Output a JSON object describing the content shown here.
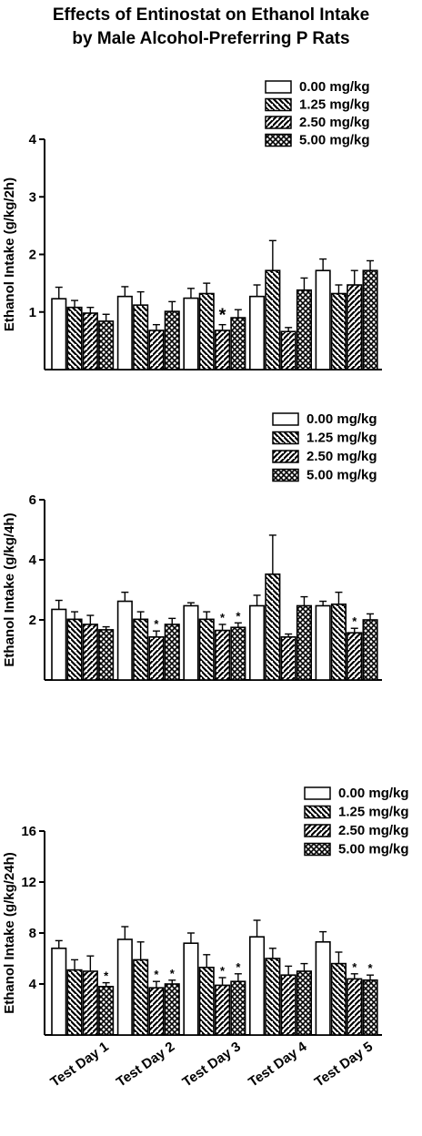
{
  "figure": {
    "title_line1": "Effects of Entinostat on Ethanol Intake",
    "title_line2": "by Male Alcohol-Preferring P Rats"
  },
  "chart_data": [
    {
      "type": "bar",
      "ylabel": "Ethanol Intake (g/kg/2h)",
      "ylim": [
        0,
        4
      ],
      "yticks": [
        1,
        2,
        3,
        4
      ],
      "categories": [
        "Test Day 1",
        "Test Day 2",
        "Test Day 3",
        "Test Day 4",
        "Test Day 5"
      ],
      "legend_position": "top-right",
      "series": [
        {
          "name": "0.00 mg/kg",
          "values": [
            1.23,
            1.27,
            1.24,
            1.27,
            1.72
          ],
          "errors": [
            0.2,
            0.17,
            0.17,
            0.2,
            0.2
          ]
        },
        {
          "name": "1.25 mg/kg",
          "values": [
            1.08,
            1.12,
            1.32,
            1.72,
            1.32
          ],
          "errors": [
            0.12,
            0.23,
            0.18,
            0.52,
            0.15
          ]
        },
        {
          "name": "2.50 mg/kg",
          "values": [
            0.98,
            0.68,
            0.68,
            0.66,
            1.47
          ],
          "errors": [
            0.1,
            0.1,
            0.1,
            0.07,
            0.25
          ]
        },
        {
          "name": "5.00 mg/kg",
          "values": [
            0.84,
            1.01,
            0.9,
            1.38,
            1.72
          ],
          "errors": [
            0.12,
            0.17,
            0.14,
            0.21,
            0.17
          ]
        }
      ],
      "significance": [
        {
          "category": "Test Day 3",
          "series": "2.50 mg/kg",
          "label": "*"
        }
      ]
    },
    {
      "type": "bar",
      "ylabel": "Ethanol Intake (g/kg/4h)",
      "ylim": [
        0,
        6
      ],
      "yticks": [
        2,
        4,
        6
      ],
      "categories": [
        "Test Day 1",
        "Test Day 2",
        "Test Day 3",
        "Test Day 4",
        "Test Day 5"
      ],
      "legend_position": "top-right",
      "series": [
        {
          "name": "0.00 mg/kg",
          "values": [
            2.35,
            2.62,
            2.47,
            2.47,
            2.47
          ],
          "errors": [
            0.3,
            0.3,
            0.1,
            0.35,
            0.15
          ]
        },
        {
          "name": "1.25 mg/kg",
          "values": [
            2.02,
            2.02,
            2.02,
            3.52,
            2.52
          ],
          "errors": [
            0.25,
            0.25,
            0.25,
            1.3,
            0.4
          ]
        },
        {
          "name": "2.50 mg/kg",
          "values": [
            1.85,
            1.43,
            1.65,
            1.43,
            1.57
          ],
          "errors": [
            0.3,
            0.2,
            0.2,
            0.1,
            0.15
          ]
        },
        {
          "name": "5.00 mg/kg",
          "values": [
            1.67,
            1.85,
            1.75,
            2.47,
            2.0
          ],
          "errors": [
            0.1,
            0.2,
            0.15,
            0.3,
            0.2
          ]
        }
      ],
      "significance": [
        {
          "category": "Test Day 2",
          "series": "2.50 mg/kg",
          "label": "*"
        },
        {
          "category": "Test Day 3",
          "series": "2.50 mg/kg",
          "label": "*"
        },
        {
          "category": "Test Day 3",
          "series": "5.00 mg/kg",
          "label": "*"
        },
        {
          "category": "Test Day 5",
          "series": "2.50 mg/kg",
          "label": "*"
        }
      ]
    },
    {
      "type": "bar",
      "ylabel": "Ethanol Intake (g/kg/24h)",
      "ylim": [
        0,
        16
      ],
      "yticks": [
        4,
        8,
        12,
        16
      ],
      "categories": [
        "Test Day 1",
        "Test Day 2",
        "Test Day 3",
        "Test Day 4",
        "Test Day 5"
      ],
      "legend_position": "top-right",
      "series": [
        {
          "name": "0.00 mg/kg",
          "values": [
            6.8,
            7.5,
            7.2,
            7.7,
            7.3
          ],
          "errors": [
            0.6,
            1.0,
            0.8,
            1.3,
            0.8
          ]
        },
        {
          "name": "1.25 mg/kg",
          "values": [
            5.1,
            5.9,
            5.3,
            6.0,
            5.6
          ],
          "errors": [
            0.8,
            1.4,
            1.0,
            0.8,
            0.9
          ]
        },
        {
          "name": "2.50 mg/kg",
          "values": [
            5.0,
            3.7,
            3.9,
            4.7,
            4.4
          ],
          "errors": [
            1.2,
            0.5,
            0.6,
            0.7,
            0.4
          ]
        },
        {
          "name": "5.00 mg/kg",
          "values": [
            3.8,
            4.0,
            4.2,
            5.0,
            4.3
          ],
          "errors": [
            0.3,
            0.3,
            0.6,
            0.6,
            0.4
          ]
        }
      ],
      "significance": [
        {
          "category": "Test Day 1",
          "series": "5.00 mg/kg",
          "label": "*"
        },
        {
          "category": "Test Day 2",
          "series": "2.50 mg/kg",
          "label": "*"
        },
        {
          "category": "Test Day 2",
          "series": "5.00 mg/kg",
          "label": "*"
        },
        {
          "category": "Test Day 3",
          "series": "2.50 mg/kg",
          "label": "*"
        },
        {
          "category": "Test Day 3",
          "series": "5.00 mg/kg",
          "label": "*"
        },
        {
          "category": "Test Day 5",
          "series": "2.50 mg/kg",
          "label": "*"
        },
        {
          "category": "Test Day 5",
          "series": "5.00 mg/kg",
          "label": "*"
        }
      ]
    }
  ],
  "colors": {
    "ink": "#000000",
    "fill": "#ffffff"
  },
  "patterns": [
    "open",
    "back-diagonal-dense",
    "forward-diagonal-dense",
    "crosshatch"
  ]
}
